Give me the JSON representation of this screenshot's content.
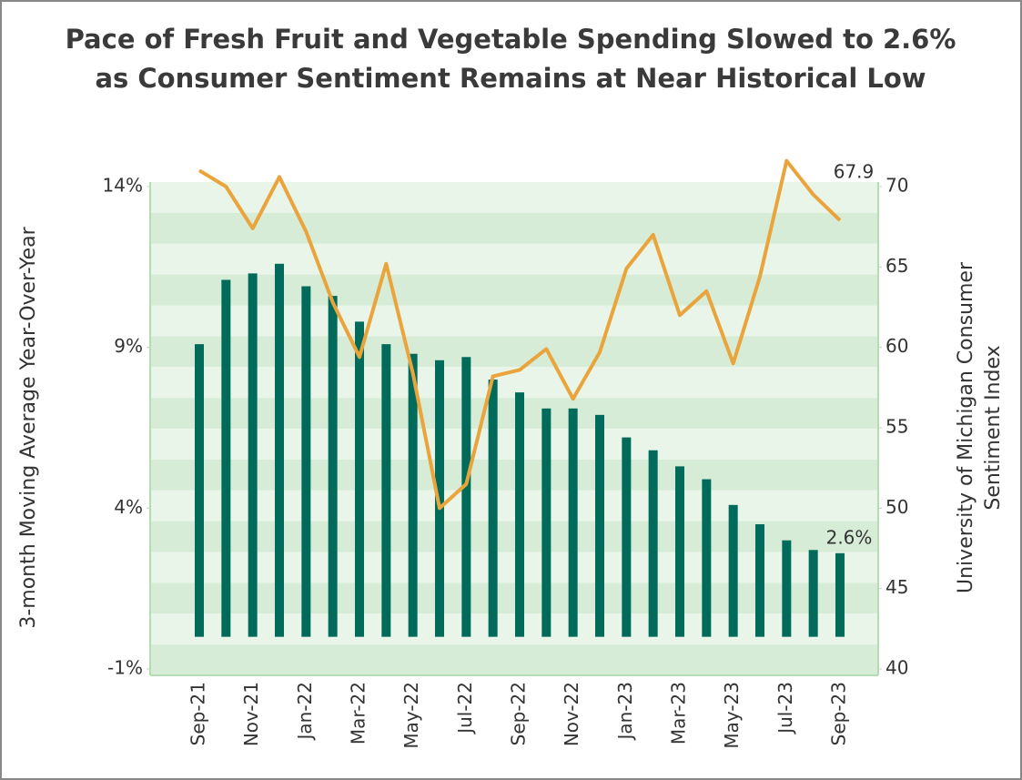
{
  "chart_data": {
    "type": "bar_line",
    "title": [
      "Pace of Fresh Fruit and Vegetable Spending Slowed to 2.6%",
      "as Consumer Sentiment Remains at Near Historical Low"
    ],
    "ylabel": "3-month Moving Average Year-Over-Year",
    "y2label": [
      "University of Michigan Consumer",
      "Sentiment Index"
    ],
    "categories": [
      "Sep-21",
      null,
      "Nov-21",
      null,
      "Jan-22",
      null,
      "Mar-22",
      null,
      "May-22",
      null,
      "Jul-22",
      null,
      "Sep-22",
      null,
      "Nov-22",
      null,
      "Jan-23",
      null,
      "Mar-23",
      null,
      "May-23",
      null,
      "Jul-23",
      null,
      "Sep-23"
    ],
    "series": [
      {
        "type": "bar",
        "color": "#006b5a",
        "values": [
          9.1,
          11.1,
          11.3,
          11.6,
          10.9,
          10.6,
          9.8,
          9.1,
          8.8,
          8.6,
          8.7,
          8.0,
          7.6,
          7.1,
          7.1,
          6.9,
          6.2,
          5.8,
          5.3,
          4.9,
          4.1,
          3.5,
          3.0,
          2.7,
          2.6
        ],
        "value_labels": [
          null,
          null,
          null,
          null,
          null,
          null,
          null,
          null,
          null,
          null,
          null,
          null,
          null,
          null,
          null,
          null,
          null,
          null,
          null,
          null,
          null,
          null,
          null,
          null,
          "2.6%"
        ]
      },
      {
        "type": "line",
        "axis": "y2",
        "color": "#e9a43c",
        "values": [
          71.0,
          70.0,
          67.4,
          70.6,
          67.2,
          62.8,
          59.4,
          65.2,
          58.4,
          50.0,
          51.5,
          58.2,
          58.6,
          59.9,
          56.8,
          59.7,
          64.9,
          67.0,
          62.0,
          63.5,
          59.0,
          64.4,
          71.6,
          69.5,
          67.9
        ],
        "value_labels": [
          null,
          null,
          null,
          null,
          null,
          null,
          null,
          null,
          null,
          null,
          null,
          null,
          null,
          null,
          null,
          null,
          null,
          null,
          null,
          null,
          null,
          null,
          null,
          null,
          "67.9"
        ]
      }
    ],
    "ylim": [
      -1,
      14
    ],
    "yticks": [
      {
        "value": -1,
        "label": "-1%"
      },
      {
        "value": 4,
        "label": "4%"
      },
      {
        "value": 9,
        "label": "9%"
      },
      {
        "value": 14,
        "label": "14%"
      }
    ],
    "y2lim": [
      40,
      70
    ],
    "y2ticks": [
      40,
      45,
      50,
      55,
      60,
      65,
      70
    ]
  }
}
